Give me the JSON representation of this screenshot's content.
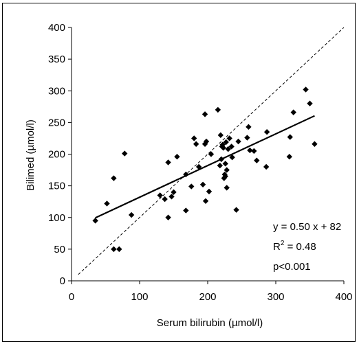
{
  "chart_data": {
    "type": "scatter",
    "xlabel": "Serum bilirubin (µmol/l)",
    "ylabel": "Bilimed (µmol/l)",
    "xlim": [
      0,
      400
    ],
    "ylim": [
      0,
      400
    ],
    "xticks": [
      0,
      100,
      200,
      300,
      400
    ],
    "yticks": [
      0,
      50,
      100,
      150,
      200,
      250,
      300,
      350,
      400
    ],
    "grid": false,
    "legend": "none",
    "points": [
      [
        35,
        95
      ],
      [
        52,
        122
      ],
      [
        62,
        162
      ],
      [
        62,
        50
      ],
      [
        70,
        50
      ],
      [
        78,
        201
      ],
      [
        88,
        104
      ],
      [
        130,
        135
      ],
      [
        137,
        129
      ],
      [
        142,
        187
      ],
      [
        142,
        100
      ],
      [
        147,
        133
      ],
      [
        150,
        140
      ],
      [
        155,
        196
      ],
      [
        168,
        168
      ],
      [
        168,
        111
      ],
      [
        176,
        149
      ],
      [
        180,
        225
      ],
      [
        183,
        216
      ],
      [
        187,
        180
      ],
      [
        193,
        152
      ],
      [
        196,
        263
      ],
      [
        196,
        216
      ],
      [
        197,
        126
      ],
      [
        198,
        220
      ],
      [
        202,
        141
      ],
      [
        205,
        200
      ],
      [
        215,
        270
      ],
      [
        218,
        182
      ],
      [
        219,
        230
      ],
      [
        220,
        192
      ],
      [
        221,
        212
      ],
      [
        222,
        215
      ],
      [
        223,
        210
      ],
      [
        224,
        162
      ],
      [
        225,
        168
      ],
      [
        226,
        165
      ],
      [
        226,
        185
      ],
      [
        227,
        219
      ],
      [
        228,
        175
      ],
      [
        228,
        147
      ],
      [
        230,
        208
      ],
      [
        232,
        225
      ],
      [
        235,
        212
      ],
      [
        236,
        195
      ],
      [
        242,
        112
      ],
      [
        245,
        220
      ],
      [
        258,
        226
      ],
      [
        260,
        243
      ],
      [
        262,
        206
      ],
      [
        268,
        205
      ],
      [
        272,
        190
      ],
      [
        286,
        180
      ],
      [
        287,
        235
      ],
      [
        320,
        196
      ],
      [
        321,
        227
      ],
      [
        326,
        266
      ],
      [
        344,
        302
      ],
      [
        350,
        280
      ],
      [
        357,
        216
      ]
    ],
    "fit_line": {
      "slope": 0.5,
      "intercept": 82,
      "x_range": [
        35,
        357
      ],
      "style": "solid"
    },
    "identity_line": {
      "style": "dashed",
      "x_range": [
        10,
        400
      ]
    },
    "annotations": {
      "equation": "y = 0.50 x + 82",
      "r2_prefix": "R",
      "r2_sup": "2",
      "r2_suffix": " = 0.48",
      "p": "p<0.001"
    }
  }
}
